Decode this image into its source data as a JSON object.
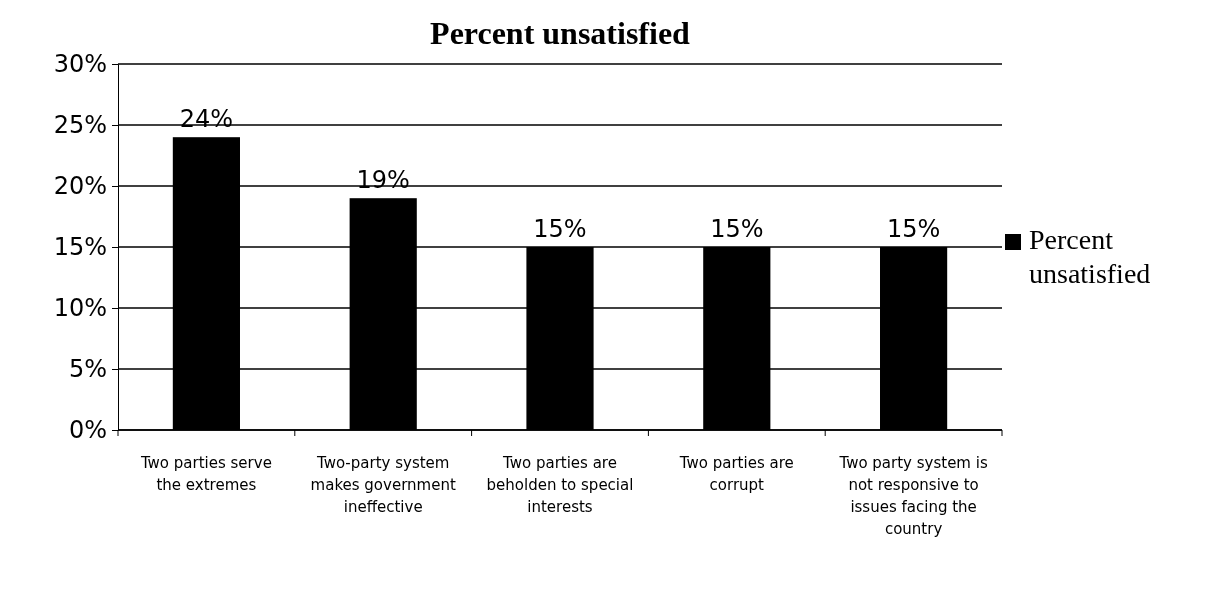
{
  "chart_data": {
    "type": "bar",
    "title": "Percent unsatisfied",
    "categories": [
      "Two parties serve the extremes",
      "Two-party system makes government ineffective",
      "Two parties are beholden to special interests",
      "Two parties are corrupt",
      "Two party system is not responsive to issues facing the country"
    ],
    "series": [
      {
        "name": "Percent unsatisfied",
        "color": "#000000",
        "values": [
          24,
          19,
          15,
          15,
          15
        ],
        "value_labels": [
          "24%",
          "19%",
          "15%",
          "15%",
          "15%"
        ]
      }
    ],
    "ylim": [
      0,
      30
    ],
    "yticks": [
      {
        "value": 0,
        "label": "0%"
      },
      {
        "value": 5,
        "label": "5%"
      },
      {
        "value": 10,
        "label": "10%"
      },
      {
        "value": 15,
        "label": "15%"
      },
      {
        "value": 20,
        "label": "20%"
      },
      {
        "value": 25,
        "label": "25%"
      },
      {
        "value": 30,
        "label": "30%"
      }
    ],
    "grid": "y",
    "legend": "right"
  }
}
